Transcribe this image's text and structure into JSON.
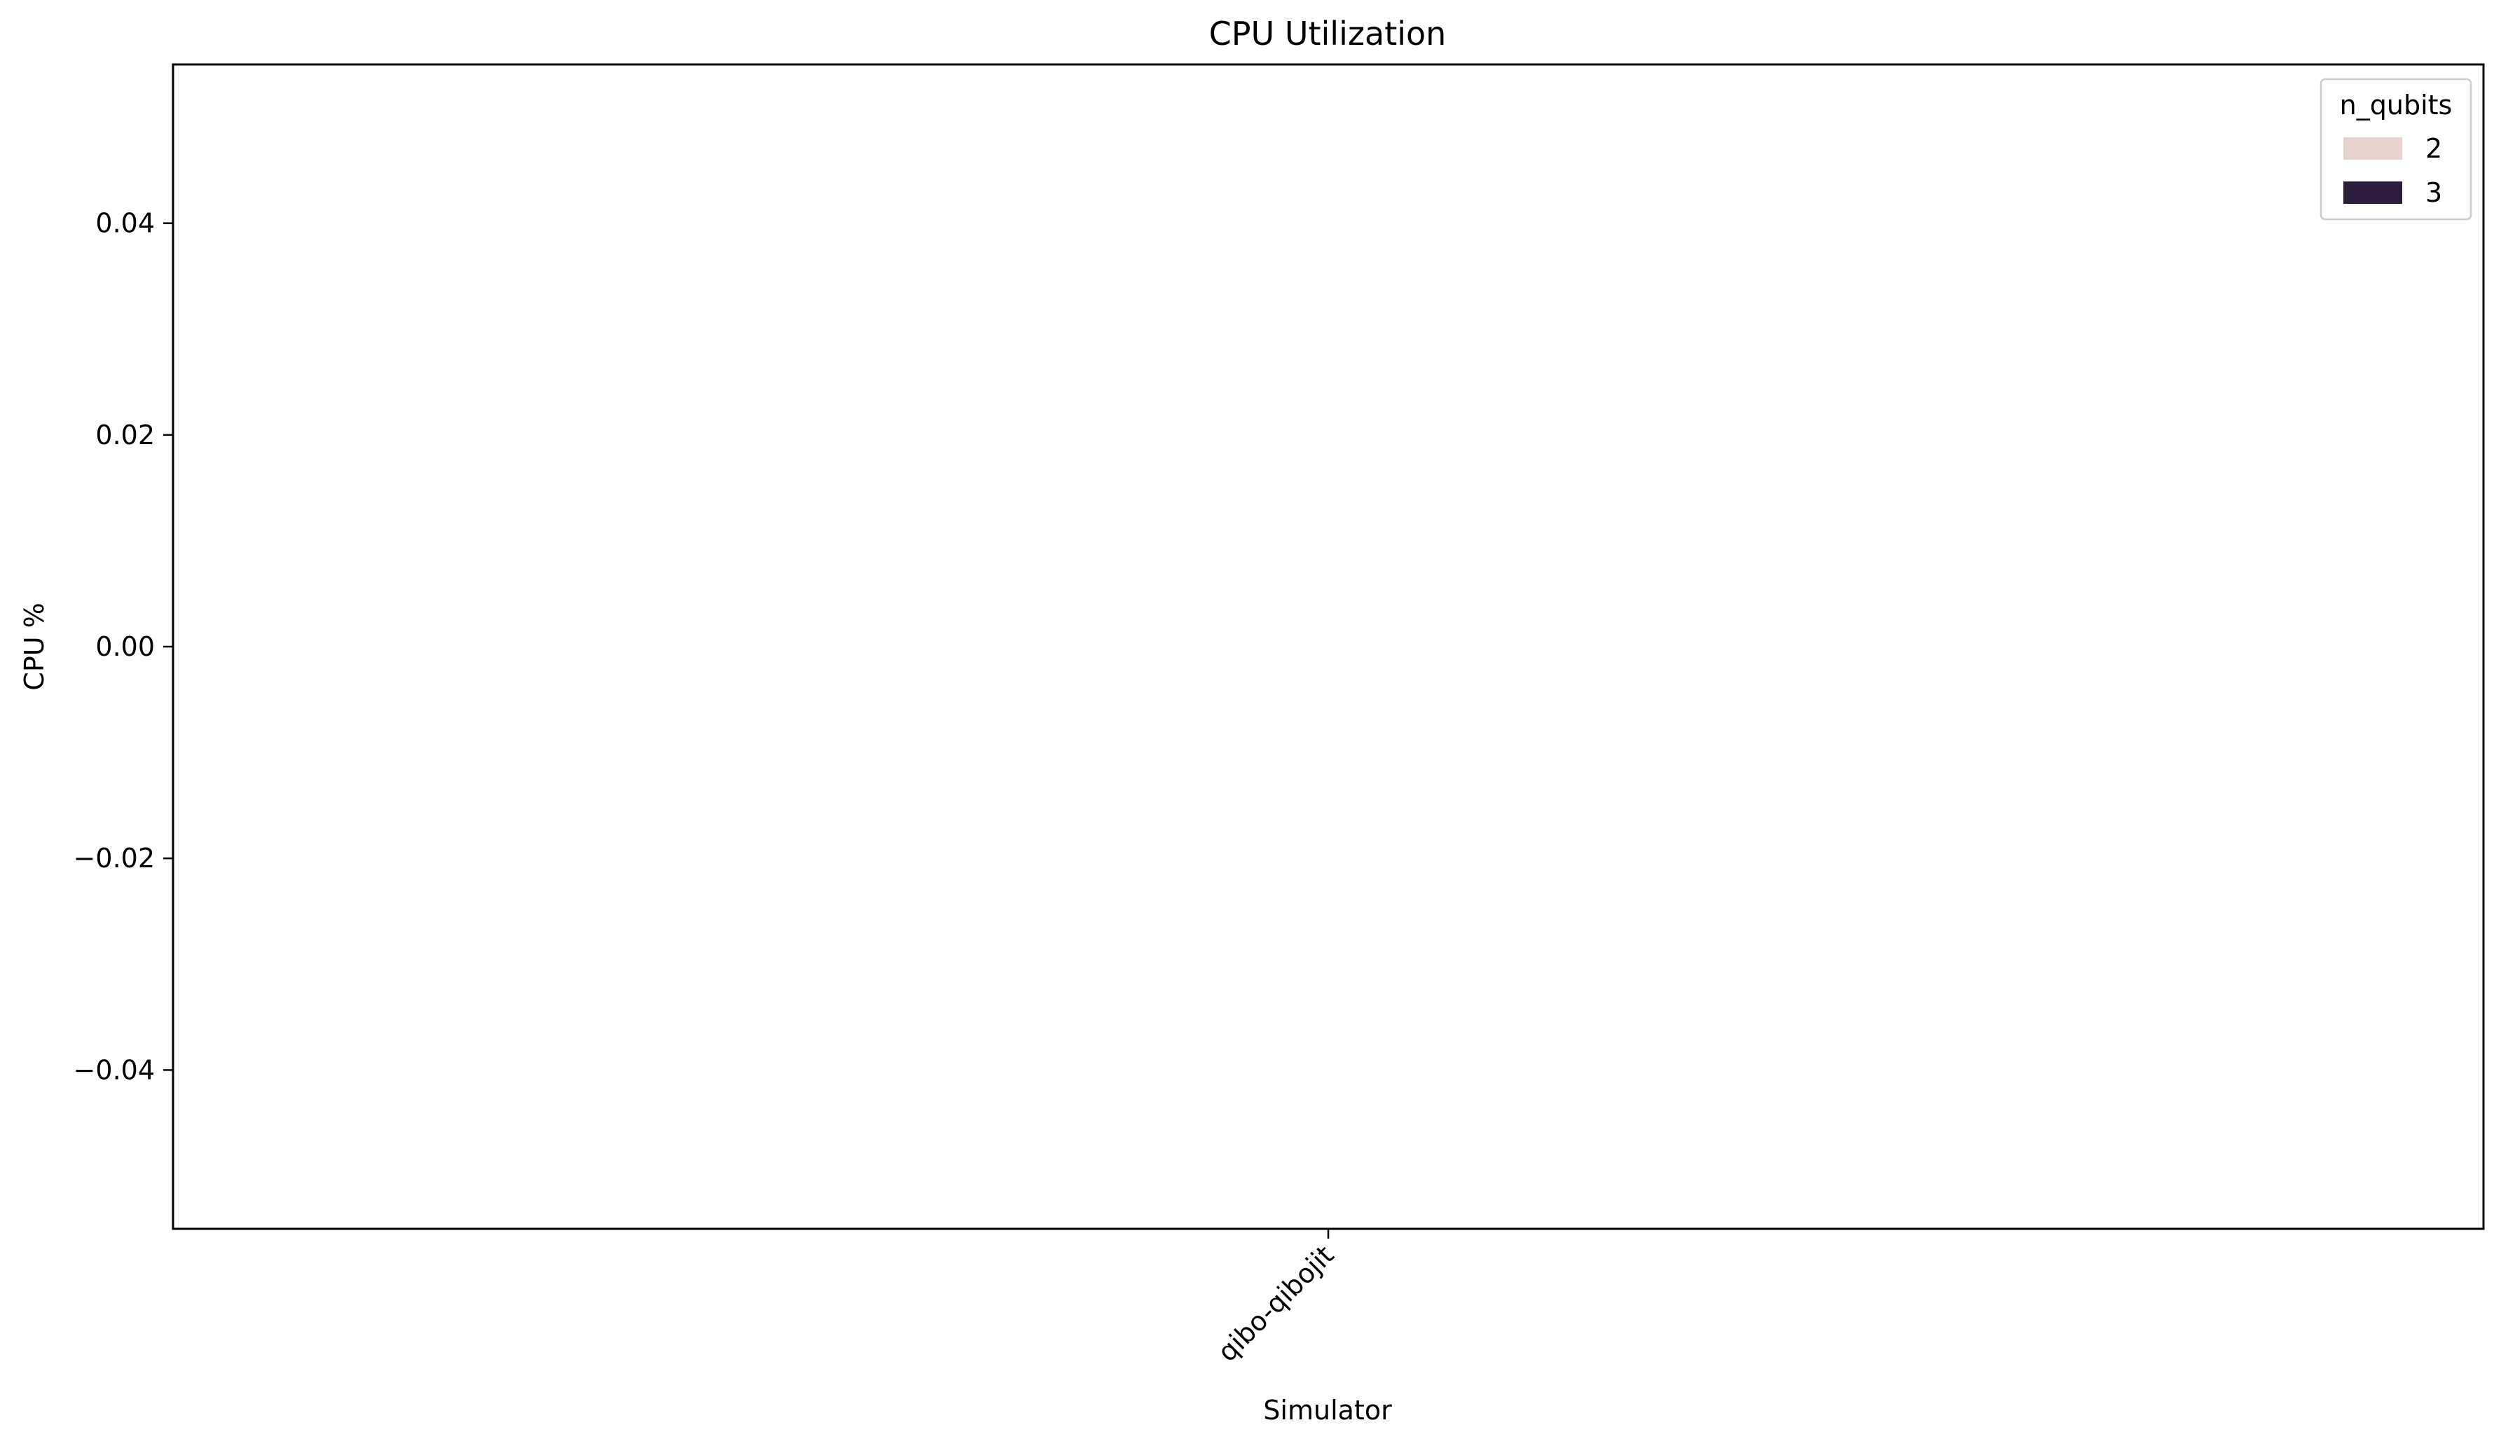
{
  "chart_data": {
    "type": "bar",
    "title": "CPU Utilization",
    "xlabel": "Simulator",
    "ylabel": "CPU %",
    "categories": [
      "qibo-qibojit"
    ],
    "ylim": [
      -0.055,
      0.055
    ],
    "yticks": [
      -0.04,
      -0.02,
      0.0,
      0.02,
      0.04
    ],
    "ytick_labels": [
      "−0.04",
      "−0.02",
      "0.00",
      "0.02",
      "0.04"
    ],
    "x_tick_rotation": 45,
    "grid": false,
    "legend": {
      "title": "n_qubits",
      "placement": "top-right",
      "entries": [
        {
          "label": "2",
          "color": "#e8d3d0"
        },
        {
          "label": "3",
          "color": "#2d1e3e"
        }
      ]
    },
    "series": [
      {
        "name": "2",
        "color": "#e8d3d0",
        "values": [
          null
        ]
      },
      {
        "name": "3",
        "color": "#2d1e3e",
        "values": [
          null
        ]
      }
    ]
  }
}
